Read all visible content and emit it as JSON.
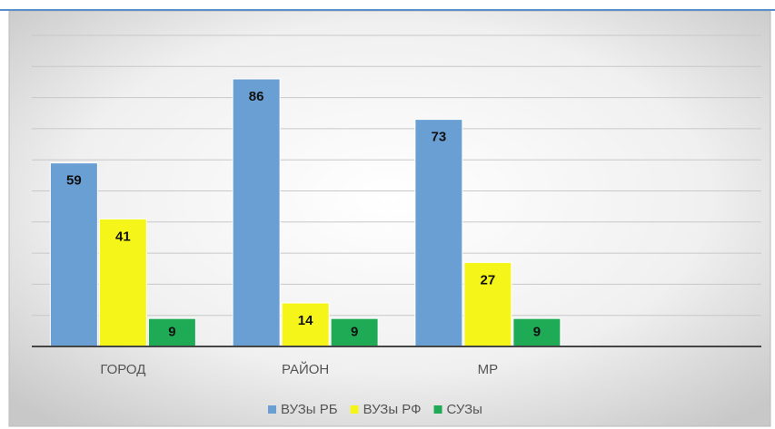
{
  "chart_data": {
    "type": "bar",
    "categories": [
      "ГОРОД",
      "РАЙОН",
      "МР",
      null
    ],
    "series": [
      {
        "name": "ВУЗы РБ",
        "color": "#6a9fd4",
        "values": [
          59,
          86,
          73,
          null
        ]
      },
      {
        "name": "ВУЗы РФ",
        "color": "#f5f51a",
        "values": [
          41,
          14,
          27,
          null
        ]
      },
      {
        "name": "СУЗы",
        "color": "#1faa55",
        "values": [
          9,
          9,
          9,
          null
        ]
      }
    ],
    "ylim": [
      0,
      100
    ],
    "yticks": [
      0,
      10,
      20,
      30,
      40,
      50,
      60,
      70,
      80,
      90,
      100
    ],
    "grid": true,
    "legend": "bottom"
  }
}
